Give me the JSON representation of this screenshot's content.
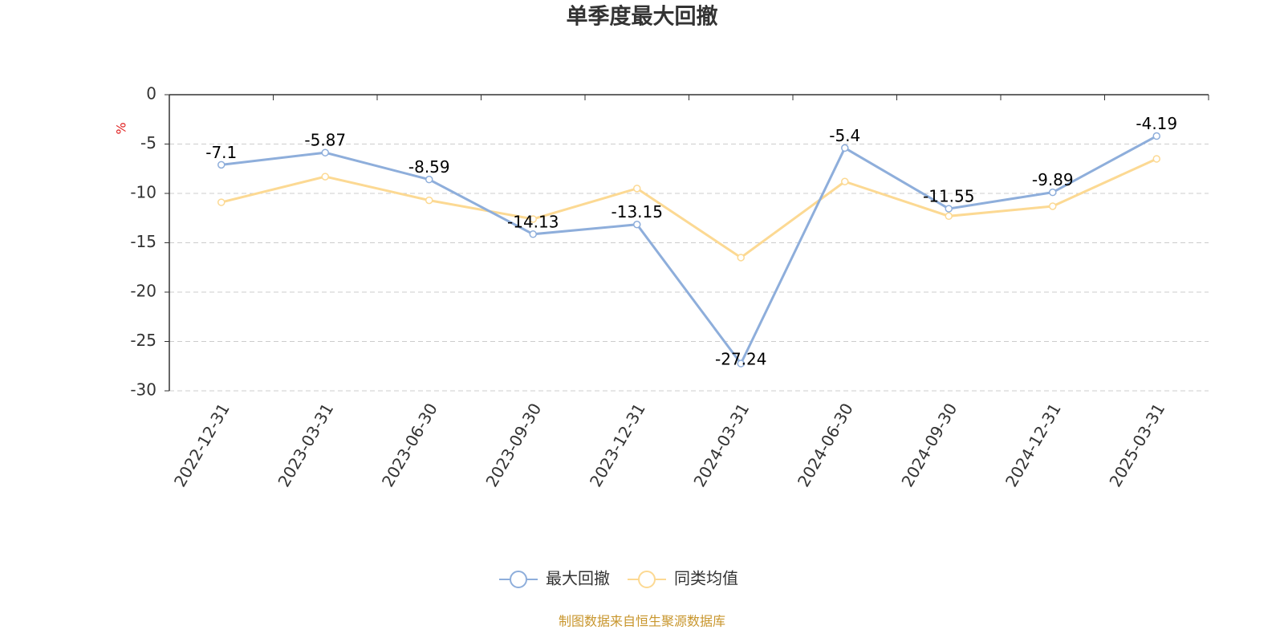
{
  "chart_data": {
    "type": "line",
    "title": "单季度最大回撤",
    "y_label": "%",
    "categories": [
      "2022-12-31",
      "2023-03-31",
      "2023-06-30",
      "2023-09-30",
      "2023-12-31",
      "2024-03-31",
      "2024-06-30",
      "2024-09-30",
      "2024-12-31",
      "2025-03-31"
    ],
    "series": [
      {
        "name": "最大回撤",
        "color": "#8eaedb",
        "values": [
          -7.1,
          -5.87,
          -8.59,
          -14.13,
          -13.15,
          -27.24,
          -5.4,
          -11.55,
          -9.89,
          -4.19
        ],
        "show_labels": true
      },
      {
        "name": "同类均值",
        "color": "#fcd993",
        "values": [
          -10.9,
          -8.3,
          -10.7,
          -12.6,
          -9.5,
          -16.5,
          -8.8,
          -12.3,
          -11.3,
          -6.5
        ],
        "show_labels": false
      }
    ],
    "ylim": [
      -30,
      0
    ],
    "yticks": [
      0,
      -5,
      -10,
      -15,
      -20,
      -25,
      -30
    ],
    "grid": true,
    "source": "制图数据来自恒生聚源数据库"
  }
}
